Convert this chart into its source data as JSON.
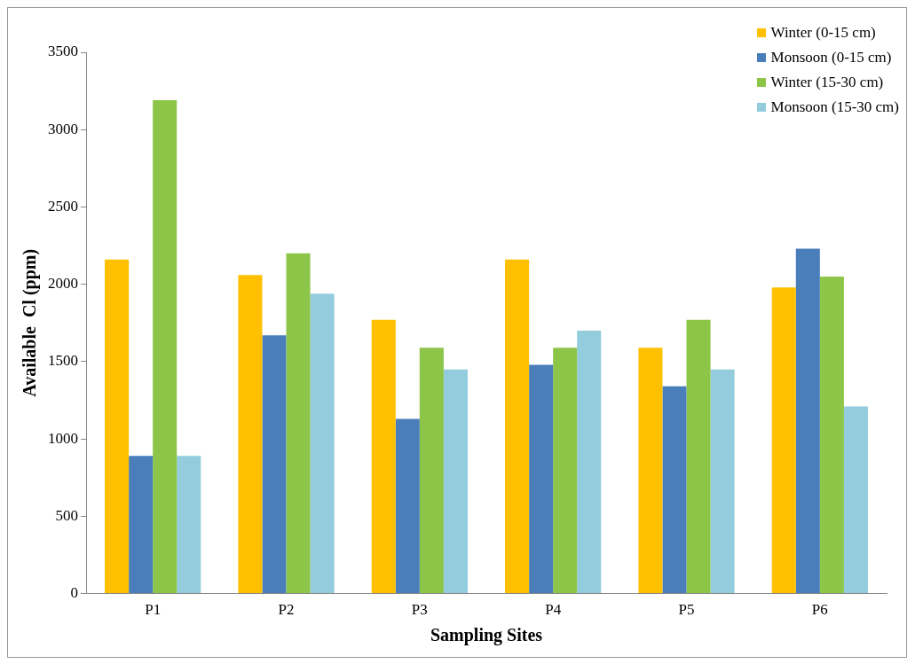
{
  "chart_data": {
    "type": "bar",
    "xlabel": "Sampling Sites",
    "ylabel": "Available  Cl (ppm)",
    "categories": [
      "P1",
      "P2",
      "P3",
      "P4",
      "P5",
      "P6"
    ],
    "series": [
      {
        "name": "Winter (0-15 cm)",
        "color": "#ffc000",
        "values": [
          2160,
          2060,
          1770,
          2160,
          1590,
          1980
        ]
      },
      {
        "name": "Monsoon (0-15 cm)",
        "color": "#4a7ebb",
        "values": [
          890,
          1670,
          1130,
          1480,
          1340,
          2230
        ]
      },
      {
        "name": "Winter (15-30 cm)",
        "color": "#8cc548",
        "values": [
          3190,
          2200,
          1590,
          1590,
          1770,
          2050
        ]
      },
      {
        "name": "Monsoon (15-30 cm)",
        "color": "#93cddd",
        "values": [
          890,
          1940,
          1450,
          1700,
          1450,
          1210
        ]
      }
    ],
    "ylim": [
      0,
      3500
    ],
    "yticks": [
      0,
      500,
      1000,
      1500,
      2000,
      2500,
      3000,
      3500
    ],
    "grid": false,
    "legend": "top right"
  }
}
